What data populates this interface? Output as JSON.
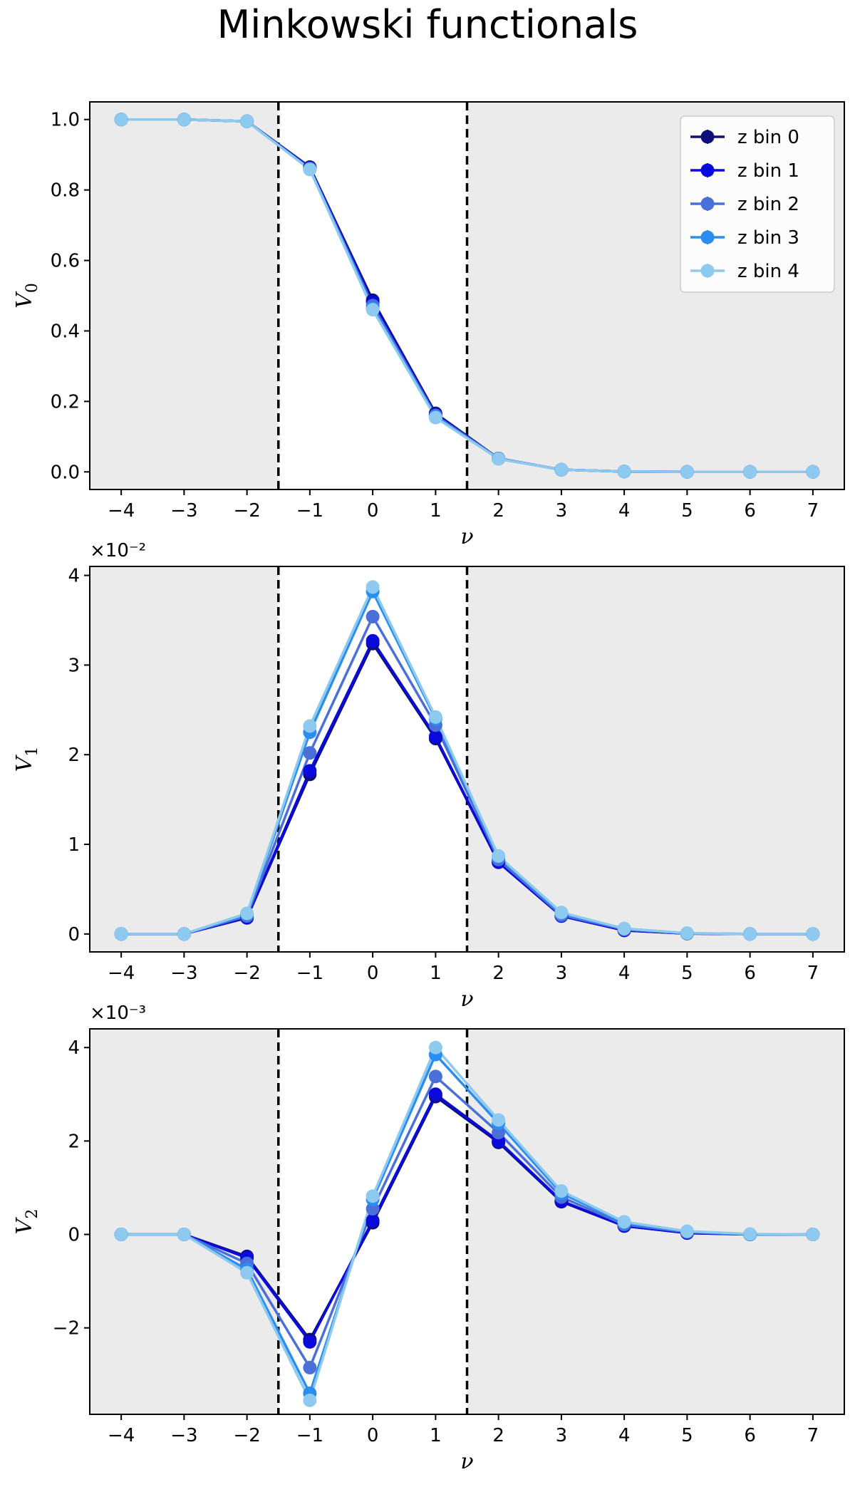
{
  "title": "Minkowski functionals",
  "colors": {
    "shade": "#ebebeb",
    "vline": "#000000"
  },
  "legend": {
    "position": "top-right",
    "entries": [
      "z bin 0",
      "z bin 1",
      "z bin 2",
      "z bin 3",
      "z bin 4"
    ]
  },
  "chart_data": [
    {
      "type": "line",
      "ylabel": "V",
      "ylabel_sub": "0",
      "xlabel": "ν",
      "exponent": "",
      "x": [
        -4,
        -3,
        -2,
        -1,
        0,
        1,
        2,
        3,
        4,
        5,
        6,
        7
      ],
      "xlim": [
        -4.5,
        7.5
      ],
      "ylim": [
        -0.05,
        1.05
      ],
      "yticks": [
        0.0,
        0.2,
        0.4,
        0.6,
        0.8,
        1.0
      ],
      "ytick_labels": [
        "0.0",
        "0.2",
        "0.4",
        "0.6",
        "0.8",
        "1.0"
      ],
      "shaded_regions": [
        [
          -4.5,
          -1.5
        ],
        [
          1.5,
          7.5
        ]
      ],
      "vlines": [
        -1.5,
        1.5
      ],
      "legend_shown": true,
      "series": [
        {
          "name": "z bin 0",
          "color": "#0f0f7a",
          "values": [
            1.0,
            1.0,
            0.995,
            0.865,
            0.487,
            0.166,
            0.038,
            0.006,
            0.001,
            0.0,
            0.0,
            0.0
          ]
        },
        {
          "name": "z bin 1",
          "color": "#0a0adc",
          "values": [
            1.0,
            1.0,
            0.995,
            0.863,
            0.482,
            0.163,
            0.038,
            0.006,
            0.001,
            0.0,
            0.0,
            0.0
          ]
        },
        {
          "name": "z bin 2",
          "color": "#4a6fd8",
          "values": [
            1.0,
            1.0,
            0.995,
            0.861,
            0.472,
            0.16,
            0.038,
            0.006,
            0.001,
            0.0,
            0.0,
            0.0
          ]
        },
        {
          "name": "z bin 3",
          "color": "#2a8ef0",
          "values": [
            1.0,
            1.0,
            0.995,
            0.859,
            0.464,
            0.156,
            0.037,
            0.006,
            0.001,
            0.0,
            0.0,
            0.0
          ]
        },
        {
          "name": "z bin 4",
          "color": "#8ec9ef",
          "values": [
            1.0,
            1.0,
            0.995,
            0.858,
            0.46,
            0.154,
            0.037,
            0.006,
            0.001,
            0.0,
            0.0,
            0.0
          ]
        }
      ]
    },
    {
      "type": "line",
      "ylabel": "V",
      "ylabel_sub": "1",
      "xlabel": "ν",
      "exponent": "×10⁻²",
      "x": [
        -4,
        -3,
        -2,
        -1,
        0,
        1,
        2,
        3,
        4,
        5,
        6,
        7
      ],
      "xlim": [
        -4.5,
        7.5
      ],
      "ylim": [
        -0.2,
        4.1
      ],
      "yticks": [
        0,
        1,
        2,
        3,
        4
      ],
      "ytick_labels": [
        "0",
        "1",
        "2",
        "3",
        "4"
      ],
      "shaded_regions": [
        [
          -4.5,
          -1.5
        ],
        [
          1.5,
          7.5
        ]
      ],
      "vlines": [
        -1.5,
        1.5
      ],
      "legend_shown": false,
      "series": [
        {
          "name": "z bin 0",
          "color": "#0f0f7a",
          "values": [
            0.0,
            0.0,
            0.18,
            1.78,
            3.24,
            2.18,
            0.8,
            0.2,
            0.04,
            0.005,
            0.0,
            0.0
          ]
        },
        {
          "name": "z bin 1",
          "color": "#0a0adc",
          "values": [
            0.0,
            0.0,
            0.18,
            1.82,
            3.27,
            2.2,
            0.8,
            0.2,
            0.04,
            0.005,
            0.0,
            0.0
          ]
        },
        {
          "name": "z bin 2",
          "color": "#4a6fd8",
          "values": [
            0.0,
            0.0,
            0.2,
            2.02,
            3.54,
            2.33,
            0.83,
            0.21,
            0.05,
            0.006,
            0.0,
            0.0
          ]
        },
        {
          "name": "z bin 3",
          "color": "#2a8ef0",
          "values": [
            0.0,
            0.0,
            0.22,
            2.25,
            3.82,
            2.4,
            0.86,
            0.23,
            0.06,
            0.008,
            0.0,
            0.0
          ]
        },
        {
          "name": "z bin 4",
          "color": "#8ec9ef",
          "values": [
            0.0,
            0.0,
            0.23,
            2.32,
            3.87,
            2.42,
            0.87,
            0.24,
            0.06,
            0.01,
            0.0,
            0.0
          ]
        }
      ]
    },
    {
      "type": "line",
      "ylabel": "V",
      "ylabel_sub": "2",
      "xlabel": "ν",
      "exponent": "×10⁻³",
      "x": [
        -4,
        -3,
        -2,
        -1,
        0,
        1,
        2,
        3,
        4,
        5,
        6,
        7
      ],
      "xlim": [
        -4.5,
        7.5
      ],
      "ylim": [
        -3.85,
        4.4
      ],
      "yticks": [
        -2,
        0,
        2,
        4
      ],
      "ytick_labels": [
        "−2",
        "0",
        "2",
        "4"
      ],
      "shaded_regions": [
        [
          -4.5,
          -1.5
        ],
        [
          1.5,
          7.5
        ]
      ],
      "vlines": [
        -1.5,
        1.5
      ],
      "legend_shown": false,
      "series": [
        {
          "name": "z bin 0",
          "color": "#0f0f7a",
          "values": [
            0.0,
            0.0,
            -0.47,
            -2.25,
            0.25,
            2.95,
            1.97,
            0.7,
            0.18,
            0.03,
            0.0,
            0.0
          ]
        },
        {
          "name": "z bin 1",
          "color": "#0a0adc",
          "values": [
            0.0,
            0.0,
            -0.5,
            -2.3,
            0.3,
            3.0,
            2.0,
            0.72,
            0.18,
            0.03,
            0.0,
            0.0
          ]
        },
        {
          "name": "z bin 2",
          "color": "#4a6fd8",
          "values": [
            0.0,
            0.0,
            -0.62,
            -2.85,
            0.55,
            3.38,
            2.18,
            0.8,
            0.21,
            0.05,
            0.0,
            0.0
          ]
        },
        {
          "name": "z bin 3",
          "color": "#2a8ef0",
          "values": [
            0.0,
            0.0,
            -0.75,
            -3.4,
            0.75,
            3.85,
            2.38,
            0.88,
            0.25,
            0.06,
            0.0,
            0.0
          ]
        },
        {
          "name": "z bin 4",
          "color": "#8ec9ef",
          "values": [
            0.0,
            0.0,
            -0.82,
            -3.55,
            0.82,
            4.0,
            2.45,
            0.93,
            0.27,
            0.07,
            0.01,
            0.0
          ]
        }
      ]
    }
  ]
}
